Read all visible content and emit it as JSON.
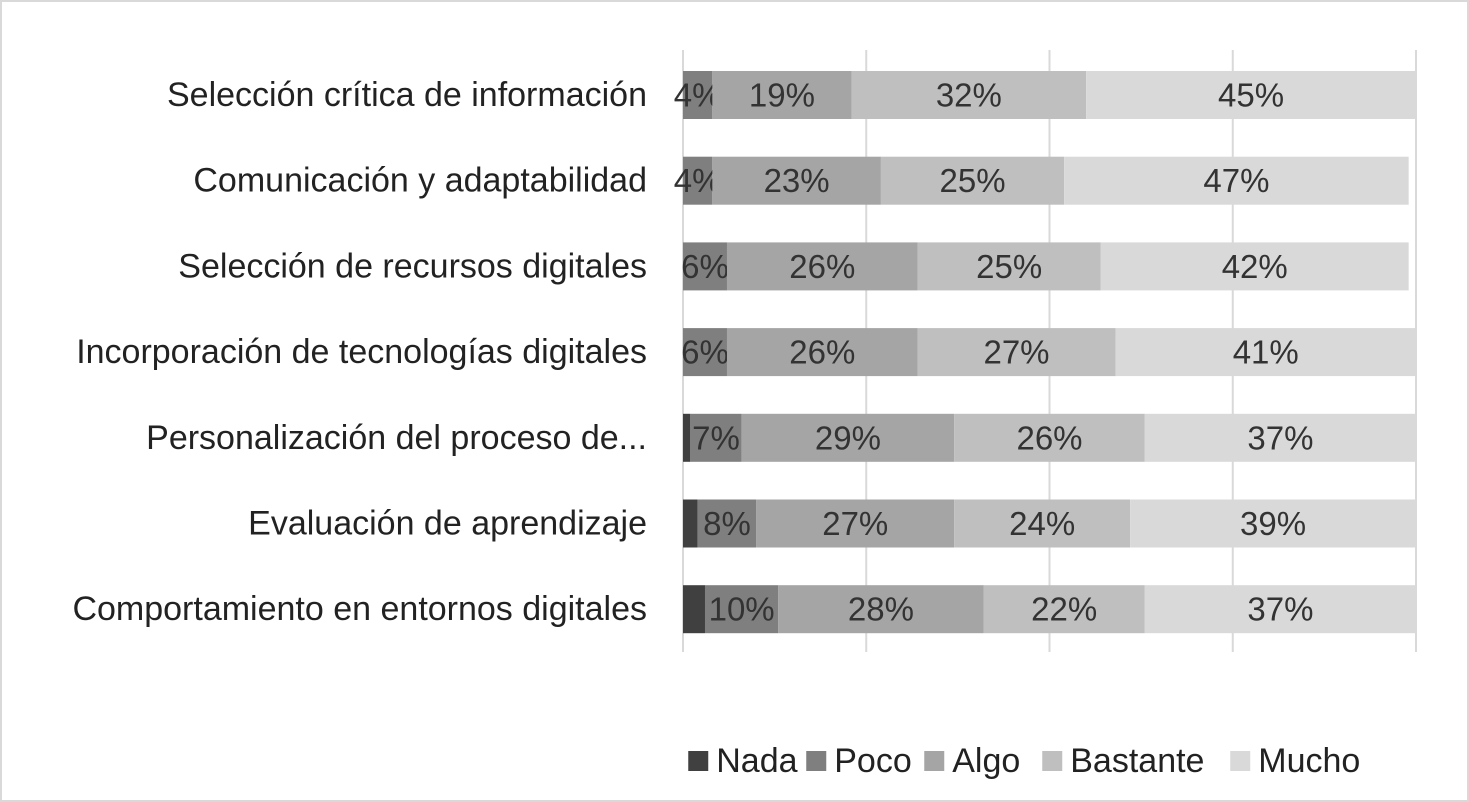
{
  "chart_data": {
    "type": "bar",
    "orientation": "horizontal",
    "stacked": true,
    "categories": [
      "Selección crítica de información",
      "Comunicación y adaptabilidad",
      "Selección de recursos digitales",
      "Incorporación de tecnologías digitales",
      "Personalización del proceso de...",
      "Evaluación de aprendizaje",
      "Comportamiento en entornos digitales"
    ],
    "series": [
      {
        "name": "Nada",
        "color": "#404040",
        "values": [
          0,
          0,
          0,
          0,
          1,
          2,
          3
        ],
        "labels": [
          "",
          "",
          "",
          "",
          "",
          "",
          ""
        ]
      },
      {
        "name": "Poco",
        "color": "#7f7f7f",
        "values": [
          4,
          4,
          6,
          6,
          7,
          8,
          10
        ],
        "labels": [
          "4%",
          "4%",
          "6%",
          "6%",
          "7%",
          "8%",
          "10%"
        ]
      },
      {
        "name": "Algo",
        "color": "#a5a5a5",
        "values": [
          19,
          23,
          26,
          26,
          29,
          27,
          28
        ],
        "labels": [
          "19%",
          "23%",
          "26%",
          "26%",
          "29%",
          "27%",
          "28%"
        ]
      },
      {
        "name": "Bastante",
        "color": "#bfbfbf",
        "values": [
          32,
          25,
          25,
          27,
          26,
          24,
          22
        ],
        "labels": [
          "32%",
          "25%",
          "25%",
          "27%",
          "26%",
          "24%",
          "22%"
        ]
      },
      {
        "name": "Mucho",
        "color": "#d9d9d9",
        "values": [
          45,
          47,
          42,
          41,
          37,
          39,
          37
        ],
        "labels": [
          "45%",
          "47%",
          "42%",
          "41%",
          "37%",
          "39%",
          "37%"
        ]
      }
    ],
    "xlim": [
      0,
      100
    ],
    "gridlines": "vertical",
    "legend_position": "bottom"
  }
}
